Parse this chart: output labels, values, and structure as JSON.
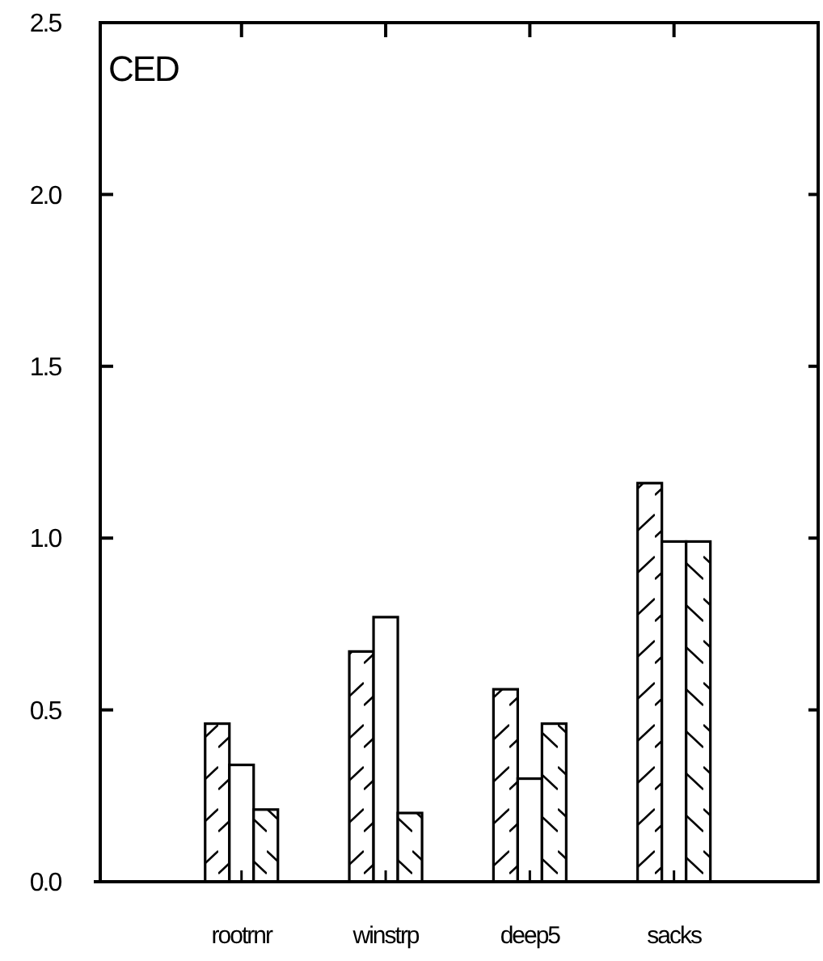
{
  "chart_data": {
    "type": "bar",
    "title": "CED",
    "categories": [
      "rootrnr",
      "winstrp",
      "deep5",
      "sacks"
    ],
    "series": [
      {
        "color": "#000000",
        "values": [
          0.46,
          0.67,
          0.56,
          1.16
        ]
      },
      {
        "color": "#000000",
        "values": [
          0.34,
          0.77,
          0.3,
          0.99
        ]
      },
      {
        "color": "#000000",
        "values": [
          0.21,
          0.2,
          0.46,
          0.99
        ]
      }
    ],
    "ylim": [
      0,
      2.5
    ],
    "yticks": [
      {
        "value": 0,
        "label": "0.0"
      },
      0.5,
      {
        "value": 1,
        "label": "1.0"
      },
      1.5,
      {
        "value": 2,
        "label": "2.0"
      },
      2.5
    ],
    "grid": false
  }
}
